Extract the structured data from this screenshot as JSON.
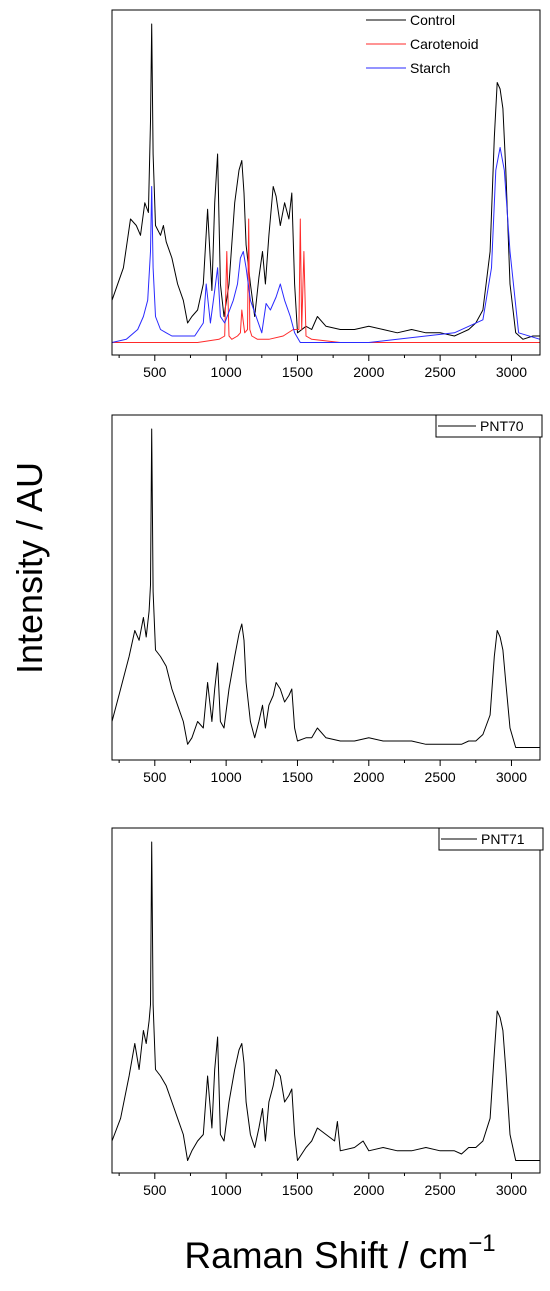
{
  "figure": {
    "ylabel": "Intensity / AU",
    "xlabel_main": "Raman Shift / cm",
    "xlabel_sup": "−1"
  },
  "chart_data": [
    {
      "type": "line",
      "title": "",
      "xlim": [
        200,
        3200
      ],
      "xticks": [
        500,
        1000,
        1500,
        2000,
        2500,
        3000
      ],
      "legend_position": "top-right",
      "grid": false,
      "series": [
        {
          "name": "Control",
          "color": "#000000",
          "x": [
            200,
            280,
            330,
            370,
            400,
            430,
            455,
            470,
            478,
            488,
            505,
            540,
            560,
            580,
            620,
            660,
            700,
            730,
            760,
            800,
            840,
            870,
            900,
            920,
            940,
            960,
            985,
            1020,
            1060,
            1090,
            1110,
            1125,
            1140,
            1170,
            1200,
            1230,
            1255,
            1275,
            1300,
            1330,
            1350,
            1380,
            1410,
            1440,
            1460,
            1480,
            1500,
            1560,
            1600,
            1640,
            1700,
            1800,
            1900,
            2000,
            2100,
            2200,
            2300,
            2400,
            2500,
            2600,
            2650,
            2700,
            2750,
            2800,
            2850,
            2880,
            2900,
            2920,
            2940,
            2960,
            2990,
            3030,
            3080,
            3150,
            3200
          ],
          "y": [
            0.15,
            0.25,
            0.4,
            0.38,
            0.35,
            0.45,
            0.42,
            0.7,
            1.0,
            0.6,
            0.38,
            0.35,
            0.38,
            0.33,
            0.28,
            0.2,
            0.15,
            0.08,
            0.1,
            0.12,
            0.2,
            0.43,
            0.18,
            0.45,
            0.6,
            0.2,
            0.1,
            0.2,
            0.45,
            0.55,
            0.58,
            0.48,
            0.32,
            0.2,
            0.1,
            0.22,
            0.3,
            0.2,
            0.35,
            0.5,
            0.47,
            0.38,
            0.45,
            0.4,
            0.48,
            0.2,
            0.05,
            0.07,
            0.06,
            0.1,
            0.07,
            0.06,
            0.06,
            0.07,
            0.06,
            0.05,
            0.06,
            0.05,
            0.05,
            0.04,
            0.05,
            0.06,
            0.08,
            0.12,
            0.3,
            0.65,
            0.82,
            0.8,
            0.74,
            0.55,
            0.2,
            0.05,
            0.03,
            0.04,
            0.04
          ]
        },
        {
          "name": "Carotenoid",
          "color": "#ff2a2a",
          "x": [
            200,
            400,
            600,
            800,
            950,
            990,
            1005,
            1020,
            1040,
            1080,
            1100,
            1110,
            1130,
            1150,
            1158,
            1166,
            1180,
            1220,
            1300,
            1400,
            1470,
            1510,
            1520,
            1530,
            1545,
            1560,
            1600,
            1800,
            2000,
            2200,
            2400,
            2600,
            2800,
            3000,
            3200
          ],
          "y": [
            0.02,
            0.02,
            0.02,
            0.02,
            0.03,
            0.04,
            0.3,
            0.04,
            0.03,
            0.04,
            0.05,
            0.12,
            0.05,
            0.06,
            0.4,
            0.06,
            0.04,
            0.03,
            0.03,
            0.04,
            0.06,
            0.06,
            0.4,
            0.06,
            0.3,
            0.04,
            0.03,
            0.02,
            0.02,
            0.02,
            0.02,
            0.02,
            0.02,
            0.02,
            0.02
          ]
        },
        {
          "name": "Starch",
          "color": "#2a2aff",
          "x": [
            200,
            300,
            380,
            420,
            450,
            470,
            478,
            488,
            505,
            540,
            580,
            620,
            700,
            780,
            840,
            860,
            890,
            920,
            940,
            960,
            990,
            1050,
            1080,
            1100,
            1120,
            1140,
            1170,
            1210,
            1250,
            1280,
            1310,
            1350,
            1380,
            1410,
            1450,
            1480,
            1520,
            1600,
            1800,
            2000,
            2200,
            2400,
            2600,
            2700,
            2800,
            2860,
            2890,
            2920,
            2950,
            2990,
            3050,
            3200
          ],
          "y": [
            0.02,
            0.03,
            0.06,
            0.1,
            0.15,
            0.3,
            0.5,
            0.25,
            0.1,
            0.06,
            0.05,
            0.04,
            0.04,
            0.04,
            0.08,
            0.2,
            0.08,
            0.18,
            0.25,
            0.1,
            0.08,
            0.15,
            0.2,
            0.28,
            0.3,
            0.25,
            0.15,
            0.1,
            0.05,
            0.14,
            0.12,
            0.16,
            0.2,
            0.15,
            0.1,
            0.05,
            0.02,
            0.02,
            0.02,
            0.02,
            0.03,
            0.04,
            0.05,
            0.07,
            0.09,
            0.25,
            0.55,
            0.62,
            0.55,
            0.3,
            0.05,
            0.03
          ]
        }
      ]
    },
    {
      "type": "line",
      "title": "",
      "xlim": [
        200,
        3200
      ],
      "xticks": [
        500,
        1000,
        1500,
        2000,
        2500,
        3000
      ],
      "legend_position": "top-right",
      "grid": false,
      "series": [
        {
          "name": "PNT70",
          "color": "#000000",
          "x": [
            200,
            260,
            320,
            360,
            390,
            420,
            440,
            460,
            470,
            478,
            488,
            505,
            540,
            580,
            620,
            660,
            700,
            730,
            760,
            800,
            840,
            870,
            900,
            920,
            940,
            960,
            985,
            1020,
            1060,
            1090,
            1110,
            1125,
            1140,
            1170,
            1200,
            1230,
            1255,
            1275,
            1300,
            1330,
            1350,
            1380,
            1410,
            1440,
            1460,
            1480,
            1500,
            1560,
            1600,
            1640,
            1700,
            1800,
            1900,
            2000,
            2100,
            2200,
            2300,
            2400,
            2500,
            2600,
            2650,
            2700,
            2750,
            2800,
            2850,
            2880,
            2900,
            2920,
            2940,
            2960,
            2990,
            3030,
            3080,
            3150,
            3200
          ],
          "y": [
            0.1,
            0.2,
            0.3,
            0.38,
            0.35,
            0.42,
            0.36,
            0.44,
            0.52,
            1.0,
            0.5,
            0.32,
            0.3,
            0.27,
            0.2,
            0.15,
            0.1,
            0.03,
            0.05,
            0.1,
            0.08,
            0.22,
            0.1,
            0.2,
            0.28,
            0.1,
            0.08,
            0.2,
            0.3,
            0.37,
            0.4,
            0.35,
            0.22,
            0.1,
            0.05,
            0.1,
            0.15,
            0.08,
            0.15,
            0.18,
            0.22,
            0.2,
            0.16,
            0.18,
            0.2,
            0.08,
            0.04,
            0.05,
            0.05,
            0.08,
            0.05,
            0.04,
            0.04,
            0.05,
            0.04,
            0.04,
            0.04,
            0.03,
            0.03,
            0.03,
            0.03,
            0.04,
            0.04,
            0.06,
            0.12,
            0.3,
            0.38,
            0.36,
            0.32,
            0.22,
            0.08,
            0.02,
            0.02,
            0.02,
            0.02
          ]
        }
      ]
    },
    {
      "type": "line",
      "title": "",
      "xlim": [
        200,
        3200
      ],
      "xticks": [
        500,
        1000,
        1500,
        2000,
        2500,
        3000
      ],
      "legend_position": "top-right",
      "grid": false,
      "series": [
        {
          "name": "PNT71",
          "color": "#000000",
          "x": [
            200,
            260,
            320,
            360,
            390,
            420,
            440,
            460,
            470,
            478,
            488,
            505,
            540,
            580,
            620,
            660,
            700,
            730,
            760,
            800,
            840,
            870,
            900,
            920,
            940,
            960,
            985,
            1020,
            1060,
            1090,
            1110,
            1125,
            1140,
            1170,
            1200,
            1230,
            1255,
            1275,
            1300,
            1330,
            1350,
            1380,
            1410,
            1440,
            1460,
            1480,
            1500,
            1560,
            1600,
            1640,
            1700,
            1760,
            1780,
            1800,
            1900,
            1960,
            2000,
            2100,
            2200,
            2300,
            2400,
            2500,
            2600,
            2650,
            2700,
            2750,
            2800,
            2850,
            2880,
            2900,
            2920,
            2940,
            2960,
            2990,
            3030,
            3080,
            3150,
            3200
          ],
          "y": [
            0.08,
            0.15,
            0.28,
            0.38,
            0.3,
            0.42,
            0.38,
            0.45,
            0.5,
            1.0,
            0.5,
            0.3,
            0.28,
            0.25,
            0.2,
            0.15,
            0.1,
            0.02,
            0.05,
            0.08,
            0.1,
            0.28,
            0.12,
            0.3,
            0.4,
            0.1,
            0.08,
            0.2,
            0.3,
            0.36,
            0.38,
            0.32,
            0.2,
            0.1,
            0.06,
            0.12,
            0.18,
            0.08,
            0.2,
            0.25,
            0.3,
            0.28,
            0.2,
            0.22,
            0.24,
            0.1,
            0.02,
            0.06,
            0.08,
            0.12,
            0.1,
            0.08,
            0.14,
            0.05,
            0.06,
            0.08,
            0.05,
            0.06,
            0.05,
            0.05,
            0.06,
            0.05,
            0.05,
            0.04,
            0.06,
            0.06,
            0.08,
            0.15,
            0.35,
            0.48,
            0.46,
            0.42,
            0.3,
            0.1,
            0.02,
            0.02,
            0.02,
            0.02
          ]
        }
      ]
    }
  ]
}
